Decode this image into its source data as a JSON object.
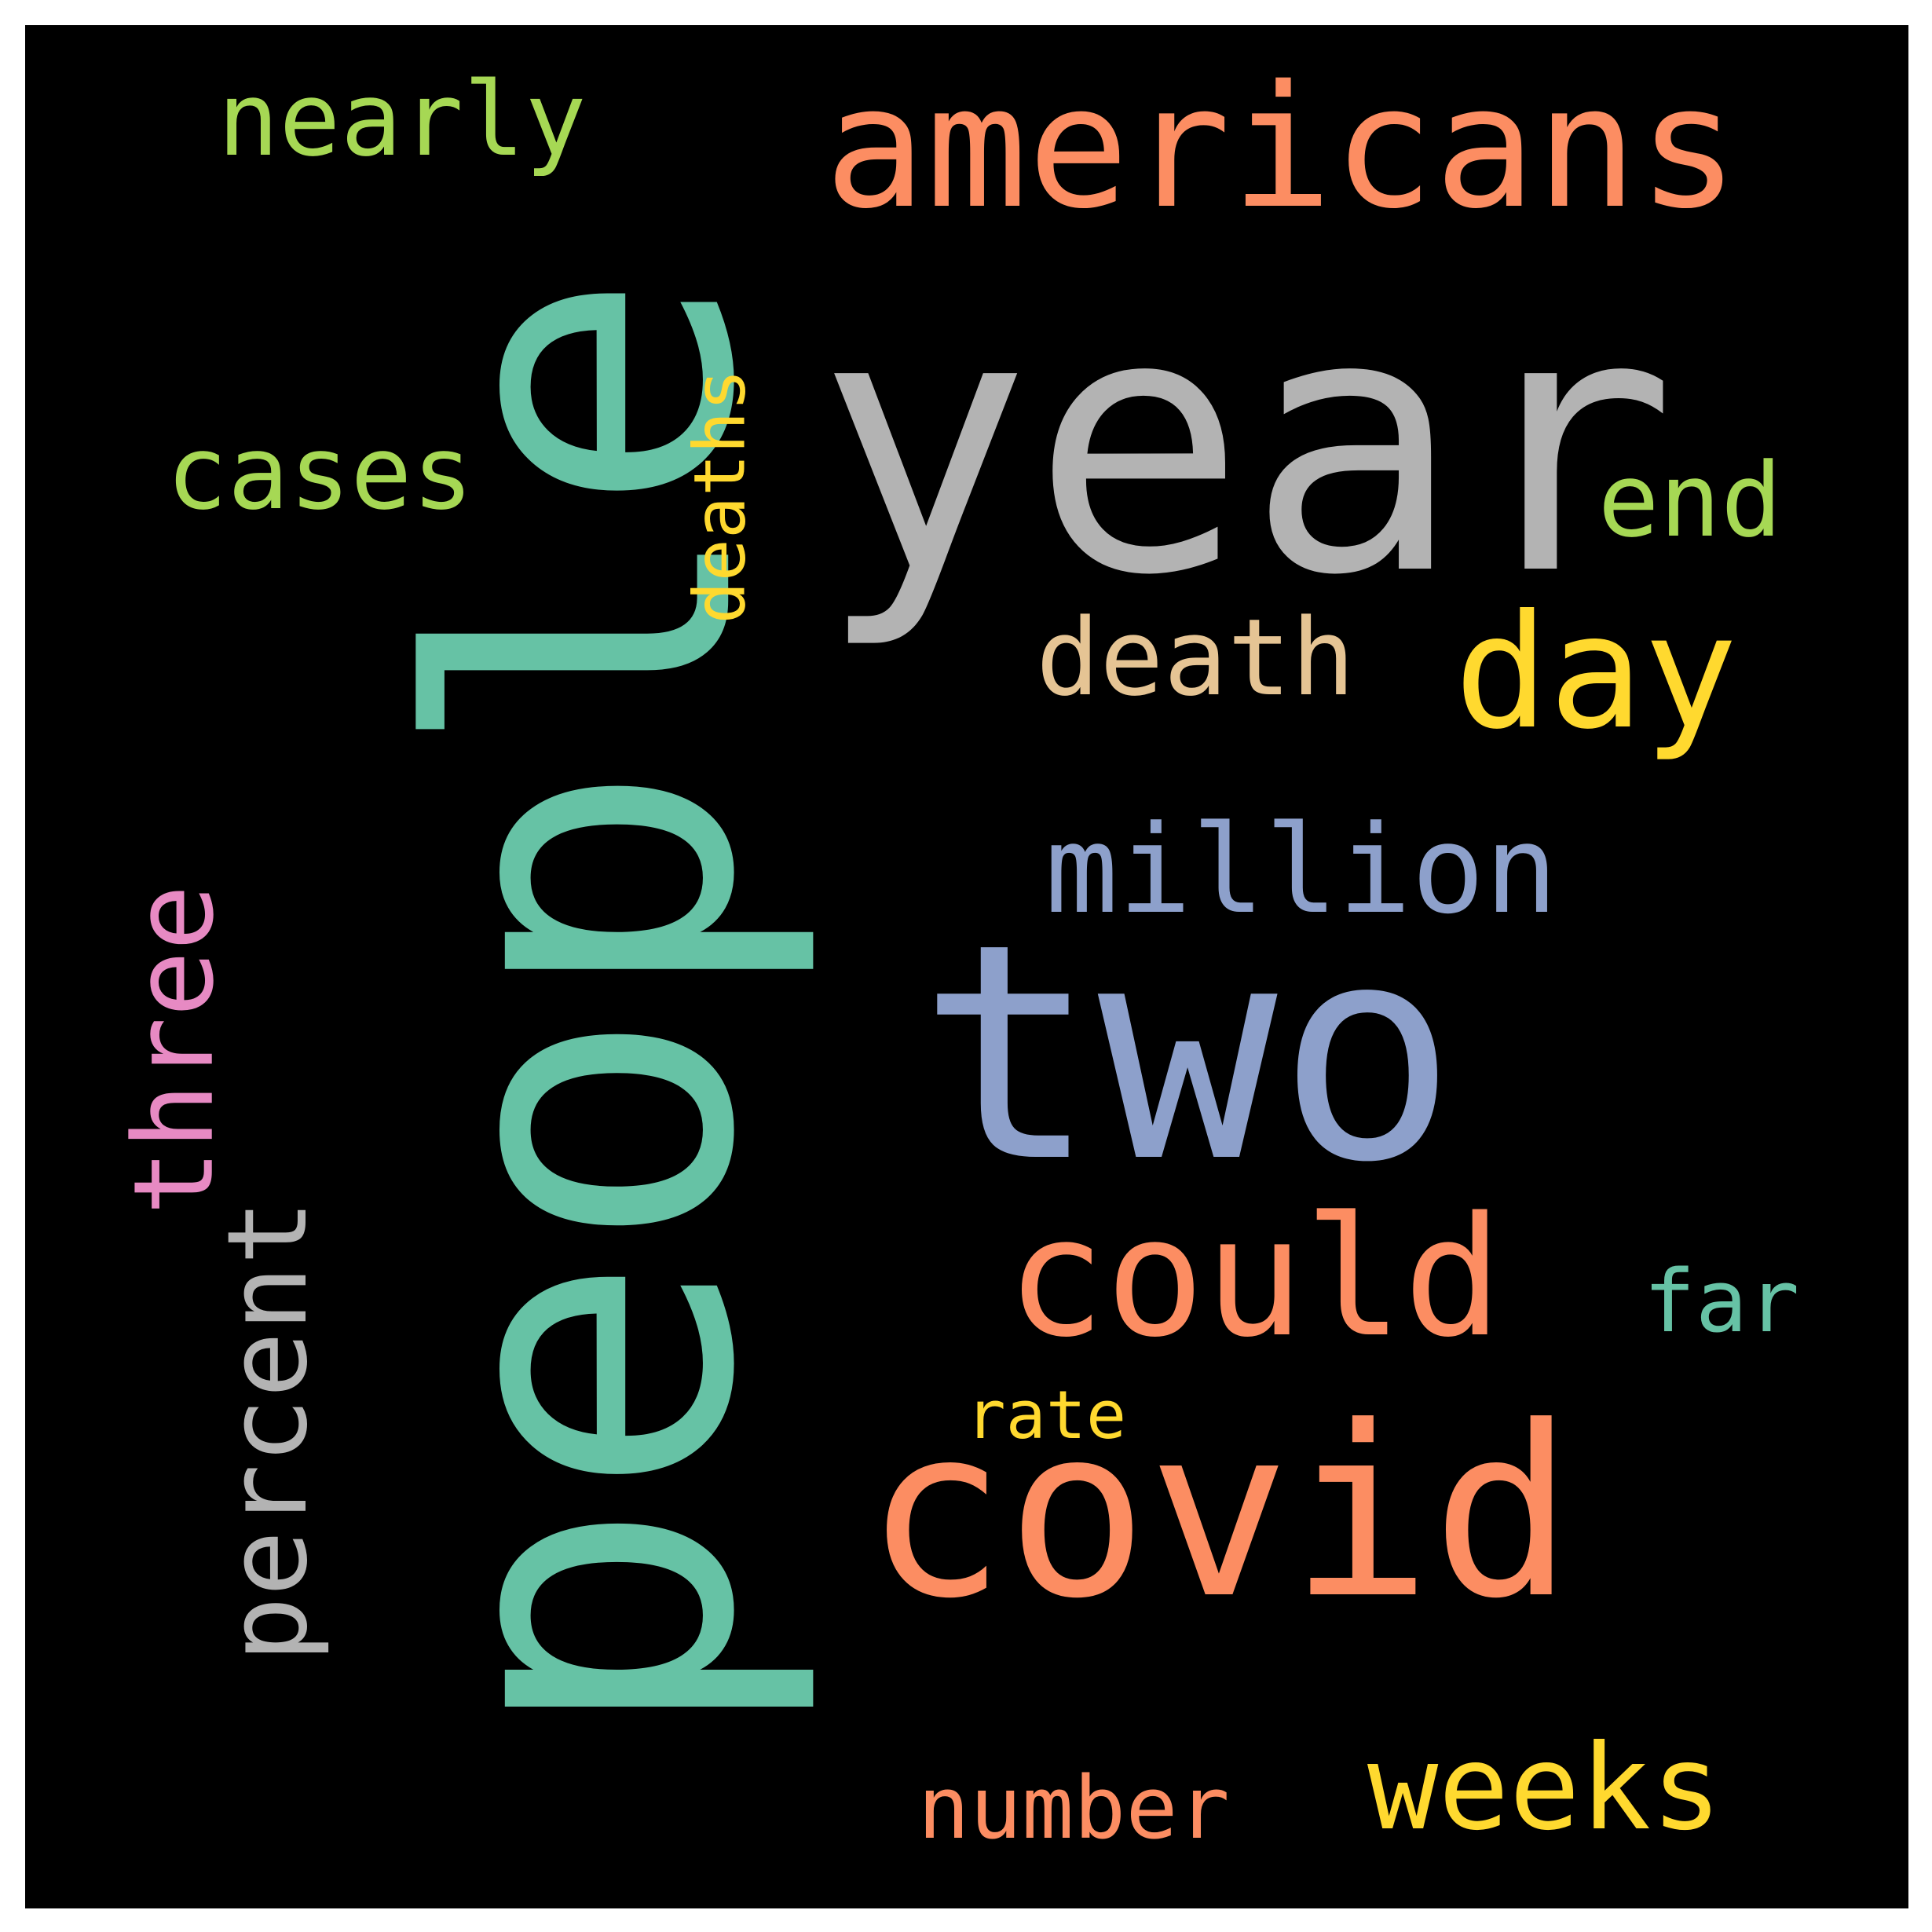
{
  "cloud": {
    "background": "#000000",
    "frame": "#ffffff",
    "words": [
      {
        "text": "people",
        "color": "#66c2a5",
        "vertical": true
      },
      {
        "text": "year",
        "color": "#b3b3b3",
        "vertical": false
      },
      {
        "text": "two",
        "color": "#8da0cb",
        "vertical": false
      },
      {
        "text": "covid",
        "color": "#fc8d62",
        "vertical": false
      },
      {
        "text": "americans",
        "color": "#fc8d62",
        "vertical": false
      },
      {
        "text": "could",
        "color": "#fc8d62",
        "vertical": false
      },
      {
        "text": "day",
        "color": "#ffd92f",
        "vertical": false
      },
      {
        "text": "million",
        "color": "#8da0cb",
        "vertical": false
      },
      {
        "text": "weeks",
        "color": "#ffd92f",
        "vertical": false
      },
      {
        "text": "percent",
        "color": "#b3b3b3",
        "vertical": true
      },
      {
        "text": "three",
        "color": "#e78ac3",
        "vertical": true
      },
      {
        "text": "death",
        "color": "#e5c494",
        "vertical": false
      },
      {
        "text": "cases",
        "color": "#a6d854",
        "vertical": false
      },
      {
        "text": "nearly",
        "color": "#a6d854",
        "vertical": false
      },
      {
        "text": "end",
        "color": "#a6d854",
        "vertical": false
      },
      {
        "text": "far",
        "color": "#66c2a5",
        "vertical": false
      },
      {
        "text": "deaths",
        "color": "#ffd92f",
        "vertical": true
      },
      {
        "text": "number",
        "color": "#fc8d62",
        "vertical": false
      },
      {
        "text": "rate",
        "color": "#ffd92f",
        "vertical": false
      }
    ]
  }
}
